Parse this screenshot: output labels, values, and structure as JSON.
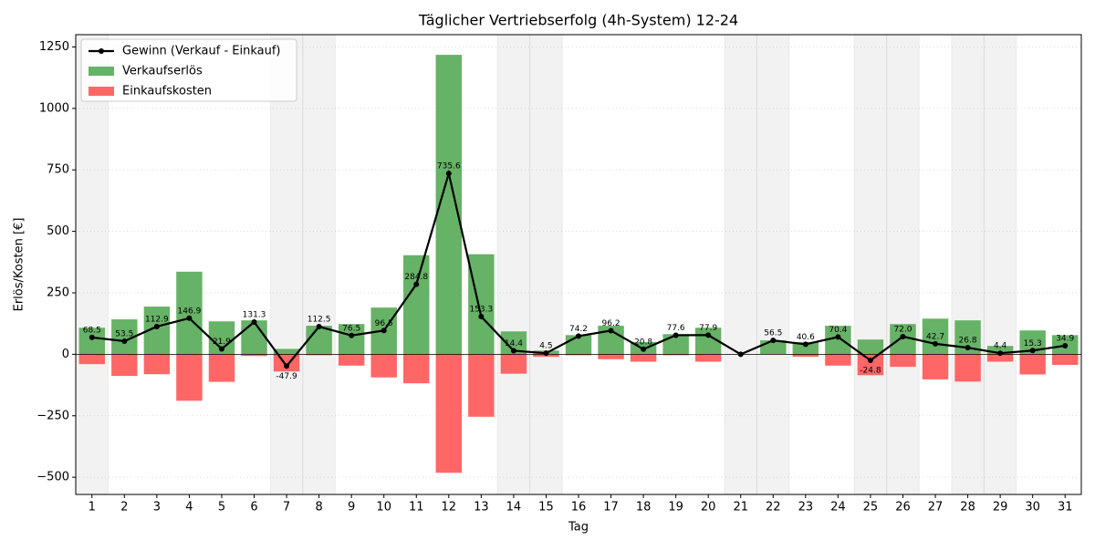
{
  "chart_data": {
    "type": "bar",
    "title": "Täglicher Vertriebserfolg (4h-System) 12-24",
    "xlabel": "Tag",
    "ylabel": "Erlös/Kosten [€]",
    "x": [
      1,
      2,
      3,
      4,
      5,
      6,
      7,
      8,
      9,
      10,
      11,
      12,
      13,
      14,
      15,
      16,
      17,
      18,
      19,
      20,
      21,
      22,
      23,
      24,
      25,
      26,
      27,
      28,
      29,
      30,
      31
    ],
    "xlim": [
      0.5,
      31.5
    ],
    "ylim": [
      -570,
      1300
    ],
    "yticks": [
      {
        "value": -500,
        "label": "−500"
      },
      {
        "value": -250,
        "label": "−250"
      },
      0,
      250,
      500,
      750,
      1000,
      1250
    ],
    "grid": true,
    "legend": "upper-left",
    "shaded_days": [
      1,
      7,
      8,
      14,
      15,
      21,
      22,
      25,
      26,
      28,
      29
    ],
    "series": [
      {
        "name": "Gewinn (Verkauf - Einkauf)",
        "type": "line",
        "color": "#000000",
        "values": [
          68.5,
          53.5,
          112.9,
          146.9,
          21.9,
          131.3,
          -47.9,
          112.5,
          76.5,
          96.5,
          284.8,
          735.6,
          153.3,
          14.4,
          4.5,
          74.2,
          96.2,
          20.8,
          77.6,
          77.9,
          0,
          56.5,
          40.6,
          70.4,
          -24.8,
          72.0,
          42.7,
          26.8,
          4.4,
          15.3,
          34.9
        ],
        "value_labels": [
          "68.5",
          "53.5",
          "112.9",
          "146.9",
          "21.9",
          "131.3",
          "-47.9",
          "112.5",
          "76.5",
          "96.5",
          "284.8",
          "735.6",
          "153.3",
          "14.4",
          "4.5",
          "74.2",
          "96.2",
          "20.8",
          "77.6",
          "77.9",
          null,
          "56.5",
          "40.6",
          "70.4",
          "-24.8",
          "72.0",
          "42.7",
          "26.8",
          "4.4",
          "15.3",
          "34.9"
        ]
      },
      {
        "name": "Verkaufserlös",
        "type": "bar",
        "color": "#66b266",
        "values": [
          108,
          142,
          194,
          336,
          134,
          138,
          22,
          116,
          123,
          190,
          403,
          1218,
          407,
          93,
          15,
          78,
          116,
          50,
          82,
          108,
          0,
          57,
          50,
          116,
          60,
          123,
          145,
          138,
          34,
          97,
          78
        ]
      },
      {
        "name": "Einkaufskosten",
        "type": "bar",
        "color": "#ff6666",
        "values": [
          -40,
          -88,
          -81,
          -189,
          -112,
          -7,
          -70,
          -4,
          -46,
          -94,
          -118,
          -482,
          -254,
          -79,
          -10,
          -4,
          -20,
          -30,
          -4,
          -30,
          0,
          0,
          -10,
          -46,
          -85,
          -51,
          -102,
          -111,
          -30,
          -82,
          -43
        ]
      }
    ]
  }
}
